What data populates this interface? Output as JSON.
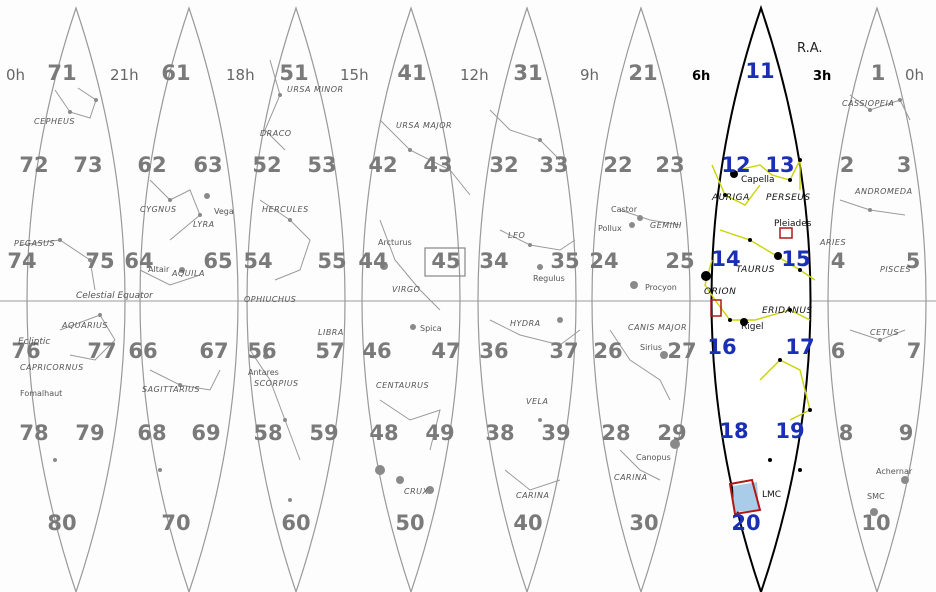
{
  "ra_header": "R.A.",
  "ra_ticks": [
    {
      "text": "0h",
      "id": "ra-0h-left"
    },
    {
      "text": "21h",
      "id": "ra-21h"
    },
    {
      "text": "18h",
      "id": "ra-18h"
    },
    {
      "text": "15h",
      "id": "ra-15h"
    },
    {
      "text": "12h",
      "id": "ra-12h"
    },
    {
      "text": "9h",
      "id": "ra-9h"
    },
    {
      "text": "6h",
      "id": "ra-6h"
    },
    {
      "text": "3h",
      "id": "ra-3h"
    },
    {
      "text": "0h",
      "id": "ra-0h-right"
    }
  ],
  "gore_numbers": [
    "71",
    "72",
    "73",
    "74",
    "75",
    "76",
    "77",
    "78",
    "79",
    "80",
    "61",
    "62",
    "63",
    "64",
    "65",
    "66",
    "67",
    "68",
    "69",
    "70",
    "51",
    "52",
    "53",
    "54",
    "55",
    "56",
    "57",
    "58",
    "59",
    "60",
    "41",
    "42",
    "43",
    "44",
    "45",
    "46",
    "47",
    "48",
    "49",
    "50",
    "31",
    "32",
    "33",
    "34",
    "35",
    "36",
    "37",
    "38",
    "39",
    "40",
    "21",
    "22",
    "23",
    "24",
    "25",
    "26",
    "27",
    "28",
    "29",
    "30",
    "1",
    "2",
    "3",
    "4",
    "5",
    "6",
    "7",
    "8",
    "9",
    "10"
  ],
  "highlighted_numbers": [
    "11",
    "12",
    "13",
    "14",
    "15",
    "16",
    "17",
    "18",
    "19",
    "20"
  ],
  "constellations": [
    "CEPHEUS",
    "PEGASUS",
    "AQUARIUS",
    "CAPRICORNUS",
    "CYGNUS",
    "LYRA",
    "AQUILA",
    "SAGITTARIUS",
    "URSA MINOR",
    "DRACO",
    "HERCULES",
    "OPHIUCHUS",
    "LIBRA",
    "SCORPIUS",
    "URSA MAJOR",
    "VIRGO",
    "CENTAURUS",
    "CRUX",
    "LEO",
    "HYDRA",
    "VELA",
    "CARINA",
    "GEMINI",
    "CANIS MAJOR",
    "CARINA",
    "CASSIOPEIA",
    "ANDROMEDA",
    "PISCES",
    "CETUS",
    "ARIES"
  ],
  "highlight_constellations": [
    "AURIGA",
    "PERSEUS",
    "TAURUS",
    "ORION",
    "ERIDANUS"
  ],
  "stars": [
    "Fomalhaut",
    "Vega",
    "Altair",
    "Arcturus",
    "Antares",
    "Spica",
    "Regulus",
    "Castor",
    "Pollux",
    "Procyon",
    "Sirius",
    "Canopus",
    "Achernar",
    "SMC"
  ],
  "highlight_stars": [
    "Capella",
    "Pleiades",
    "Rigel",
    "LMC"
  ],
  "equator_label": "Celestial Equator",
  "ecliptic_label": "Ecliptic",
  "colors": {
    "highlight_border": "#000000",
    "highlight_numbers": "#1a2fb5",
    "lines": "#c8d400",
    "markers": "#b01818",
    "gray": "#8a8a8a"
  }
}
